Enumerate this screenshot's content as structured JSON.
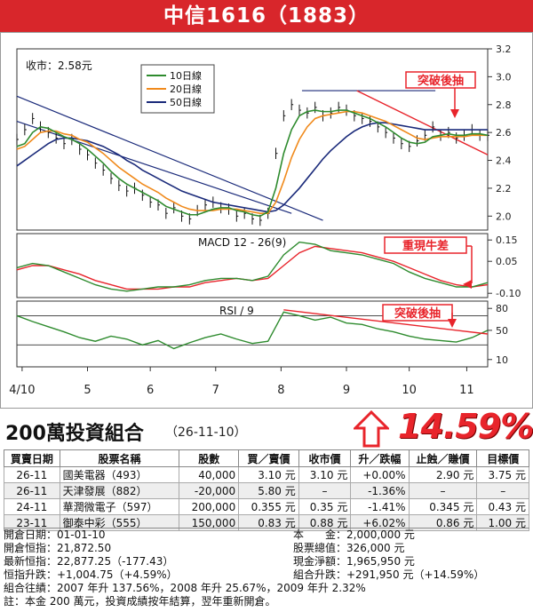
{
  "title": "中信1616（1883）",
  "chart_data": {
    "type": "line",
    "close_label": "收市：2.58元",
    "legend": [
      "10日線",
      "20日線",
      "50日線"
    ],
    "legend_colors": [
      "#2e8b2e",
      "#f08a1c",
      "#1a2a7a"
    ],
    "y_ticks": [
      "3.2",
      "3.0",
      "2.8",
      "2.6",
      "2.4",
      "2.2",
      "2.0"
    ],
    "ylim": [
      1.9,
      3.2
    ],
    "x_ticks": [
      "4/10",
      "5",
      "6",
      "7",
      "8",
      "9",
      "10",
      "11"
    ],
    "annotation_breakout": "突破後抽",
    "macd_label": "MACD 12 - 26(9)",
    "macd_ticks": [
      "0.15",
      "0.05",
      "-0.10"
    ],
    "macd_annotation": "重現牛差",
    "rsi_label": "RSI / 9",
    "rsi_ticks": [
      "80",
      "50",
      "10"
    ],
    "rsi_annotation": "突破後抽",
    "price_x": [
      0,
      3,
      6,
      9,
      12,
      15,
      18,
      21,
      24,
      27,
      30,
      33,
      36,
      39,
      42,
      45,
      48,
      51,
      54,
      57,
      60,
      63,
      66,
      69,
      72,
      75,
      78,
      81,
      84,
      87,
      90,
      93,
      96,
      99,
      102,
      105,
      108,
      111,
      114,
      117,
      120,
      123,
      126,
      129,
      132,
      135,
      138,
      141,
      144,
      147,
      150,
      153,
      156,
      159,
      162,
      165,
      168,
      171,
      174,
      177,
      180
    ],
    "price_close": [
      2.55,
      2.62,
      2.7,
      2.64,
      2.6,
      2.56,
      2.52,
      2.55,
      2.48,
      2.44,
      2.38,
      2.33,
      2.27,
      2.22,
      2.18,
      2.2,
      2.15,
      2.1,
      2.08,
      2.02,
      2.06,
      2.0,
      1.98,
      2.04,
      2.08,
      2.1,
      2.06,
      2.05,
      2.0,
      2.02,
      1.98,
      1.97,
      2.02,
      2.45,
      2.72,
      2.8,
      2.76,
      2.74,
      2.78,
      2.72,
      2.74,
      2.78,
      2.76,
      2.72,
      2.7,
      2.68,
      2.64,
      2.6,
      2.56,
      2.52,
      2.5,
      2.54,
      2.58,
      2.64,
      2.58,
      2.6,
      2.56,
      2.58,
      2.62,
      2.58,
      2.58
    ],
    "ma10": [
      2.5,
      2.52,
      2.6,
      2.64,
      2.63,
      2.6,
      2.57,
      2.55,
      2.52,
      2.48,
      2.43,
      2.38,
      2.32,
      2.27,
      2.23,
      2.2,
      2.17,
      2.14,
      2.11,
      2.07,
      2.05,
      2.03,
      2.01,
      2.01,
      2.03,
      2.05,
      2.06,
      2.06,
      2.04,
      2.03,
      2.01,
      2.0,
      2.03,
      2.2,
      2.45,
      2.62,
      2.72,
      2.75,
      2.76,
      2.75,
      2.75,
      2.76,
      2.76,
      2.74,
      2.72,
      2.7,
      2.67,
      2.64,
      2.6,
      2.56,
      2.53,
      2.52,
      2.53,
      2.57,
      2.58,
      2.59,
      2.58,
      2.58,
      2.59,
      2.59,
      2.58
    ],
    "ma20": [
      2.48,
      2.5,
      2.55,
      2.6,
      2.61,
      2.61,
      2.59,
      2.58,
      2.55,
      2.53,
      2.49,
      2.45,
      2.4,
      2.35,
      2.31,
      2.27,
      2.23,
      2.2,
      2.17,
      2.13,
      2.1,
      2.07,
      2.05,
      2.04,
      2.04,
      2.04,
      2.05,
      2.05,
      2.05,
      2.04,
      2.03,
      2.02,
      2.02,
      2.1,
      2.25,
      2.42,
      2.55,
      2.64,
      2.7,
      2.72,
      2.73,
      2.74,
      2.75,
      2.75,
      2.74,
      2.72,
      2.7,
      2.68,
      2.65,
      2.62,
      2.59,
      2.56,
      2.55,
      2.56,
      2.57,
      2.57,
      2.57,
      2.57,
      2.58,
      2.58,
      2.58
    ],
    "ma50": [
      2.36,
      2.4,
      2.44,
      2.48,
      2.52,
      2.55,
      2.56,
      2.56,
      2.55,
      2.54,
      2.52,
      2.5,
      2.47,
      2.44,
      2.4,
      2.37,
      2.33,
      2.3,
      2.27,
      2.24,
      2.21,
      2.18,
      2.16,
      2.14,
      2.12,
      2.1,
      2.09,
      2.08,
      2.07,
      2.06,
      2.05,
      2.04,
      2.03,
      2.04,
      2.08,
      2.14,
      2.2,
      2.27,
      2.34,
      2.41,
      2.47,
      2.52,
      2.57,
      2.61,
      2.64,
      2.66,
      2.67,
      2.67,
      2.66,
      2.65,
      2.64,
      2.63,
      2.62,
      2.62,
      2.62,
      2.62,
      2.62,
      2.62,
      2.62,
      2.62,
      2.62
    ],
    "macd_x": [
      0,
      6,
      12,
      18,
      24,
      30,
      36,
      42,
      48,
      54,
      60,
      66,
      72,
      78,
      84,
      90,
      96,
      102,
      108,
      114,
      120,
      126,
      132,
      138,
      144,
      150,
      156,
      162,
      168,
      174,
      180
    ],
    "macd_line": [
      0.02,
      0.04,
      0.03,
      0.0,
      -0.03,
      -0.06,
      -0.08,
      -0.09,
      -0.08,
      -0.07,
      -0.07,
      -0.06,
      -0.04,
      -0.03,
      -0.03,
      -0.04,
      -0.02,
      0.08,
      0.14,
      0.13,
      0.1,
      0.09,
      0.08,
      0.06,
      0.04,
      0.0,
      -0.03,
      -0.05,
      -0.07,
      -0.07,
      -0.05
    ],
    "macd_signal": [
      0.01,
      0.03,
      0.03,
      0.01,
      -0.01,
      -0.04,
      -0.06,
      -0.08,
      -0.08,
      -0.08,
      -0.07,
      -0.07,
      -0.05,
      -0.04,
      -0.03,
      -0.04,
      -0.03,
      0.03,
      0.09,
      0.12,
      0.11,
      0.1,
      0.09,
      0.07,
      0.05,
      0.02,
      -0.01,
      -0.04,
      -0.06,
      -0.07,
      -0.06
    ],
    "rsi_x": [
      0,
      6,
      12,
      18,
      24,
      30,
      36,
      42,
      48,
      54,
      60,
      66,
      72,
      78,
      84,
      90,
      96,
      102,
      108,
      114,
      120,
      126,
      132,
      138,
      144,
      150,
      156,
      162,
      168,
      174,
      180
    ],
    "rsi_values": [
      70,
      62,
      55,
      48,
      40,
      35,
      42,
      38,
      30,
      36,
      25,
      33,
      40,
      45,
      38,
      32,
      35,
      75,
      70,
      64,
      68,
      60,
      58,
      52,
      48,
      42,
      38,
      36,
      34,
      40,
      50
    ]
  },
  "portfolio": {
    "title": "200萬投資組合",
    "date": "（26-11-10）",
    "gain_pct": "14.59%",
    "headers": [
      "買賣日期",
      "股票名稱",
      "股數",
      "買／賣價",
      "收市價",
      "升／跌幅",
      "止蝕／賺價",
      "目標價"
    ],
    "rows": [
      [
        "26-11",
        "國美電器（493）",
        "40,000",
        "3.10 元",
        "3.10 元",
        "+0.00%",
        "2.90 元",
        "3.75 元"
      ],
      [
        "26-11",
        "天津發展（882）",
        "-20,000",
        "5.80 元",
        "–",
        "-1.36%",
        "–",
        "–"
      ],
      [
        "24-11",
        "華潤微電子（597）",
        "200,000",
        "0.355 元",
        "0.35 元",
        "-1.41%",
        "0.345 元",
        "0.43 元"
      ],
      [
        "23-11",
        "御泰中彩（555）",
        "150,000",
        "0.83 元",
        "0.88 元",
        "+6.02%",
        "0.86 元",
        "1.00 元"
      ]
    ],
    "summary_left": [
      "開倉日期：01-01-10",
      "開倉恒指：21,872.50",
      "最新恒指：22,877.25（-177.43）",
      "恒指升跌：+1,004.75（+4.59%）"
    ],
    "summary_right": [
      "本　　金：2,000,000 元",
      "股票總值：326,000 元",
      "現金淨額：1,965,950 元",
      "組合升跌：+291,950 元（+14.59%）"
    ],
    "history": "組合往績：2007 年升 137.56%，2008 年升 25.67%，2009 年升 2.32%",
    "note": "註：本金 200 萬元，投資成績按年結算，翌年重新開倉。"
  }
}
